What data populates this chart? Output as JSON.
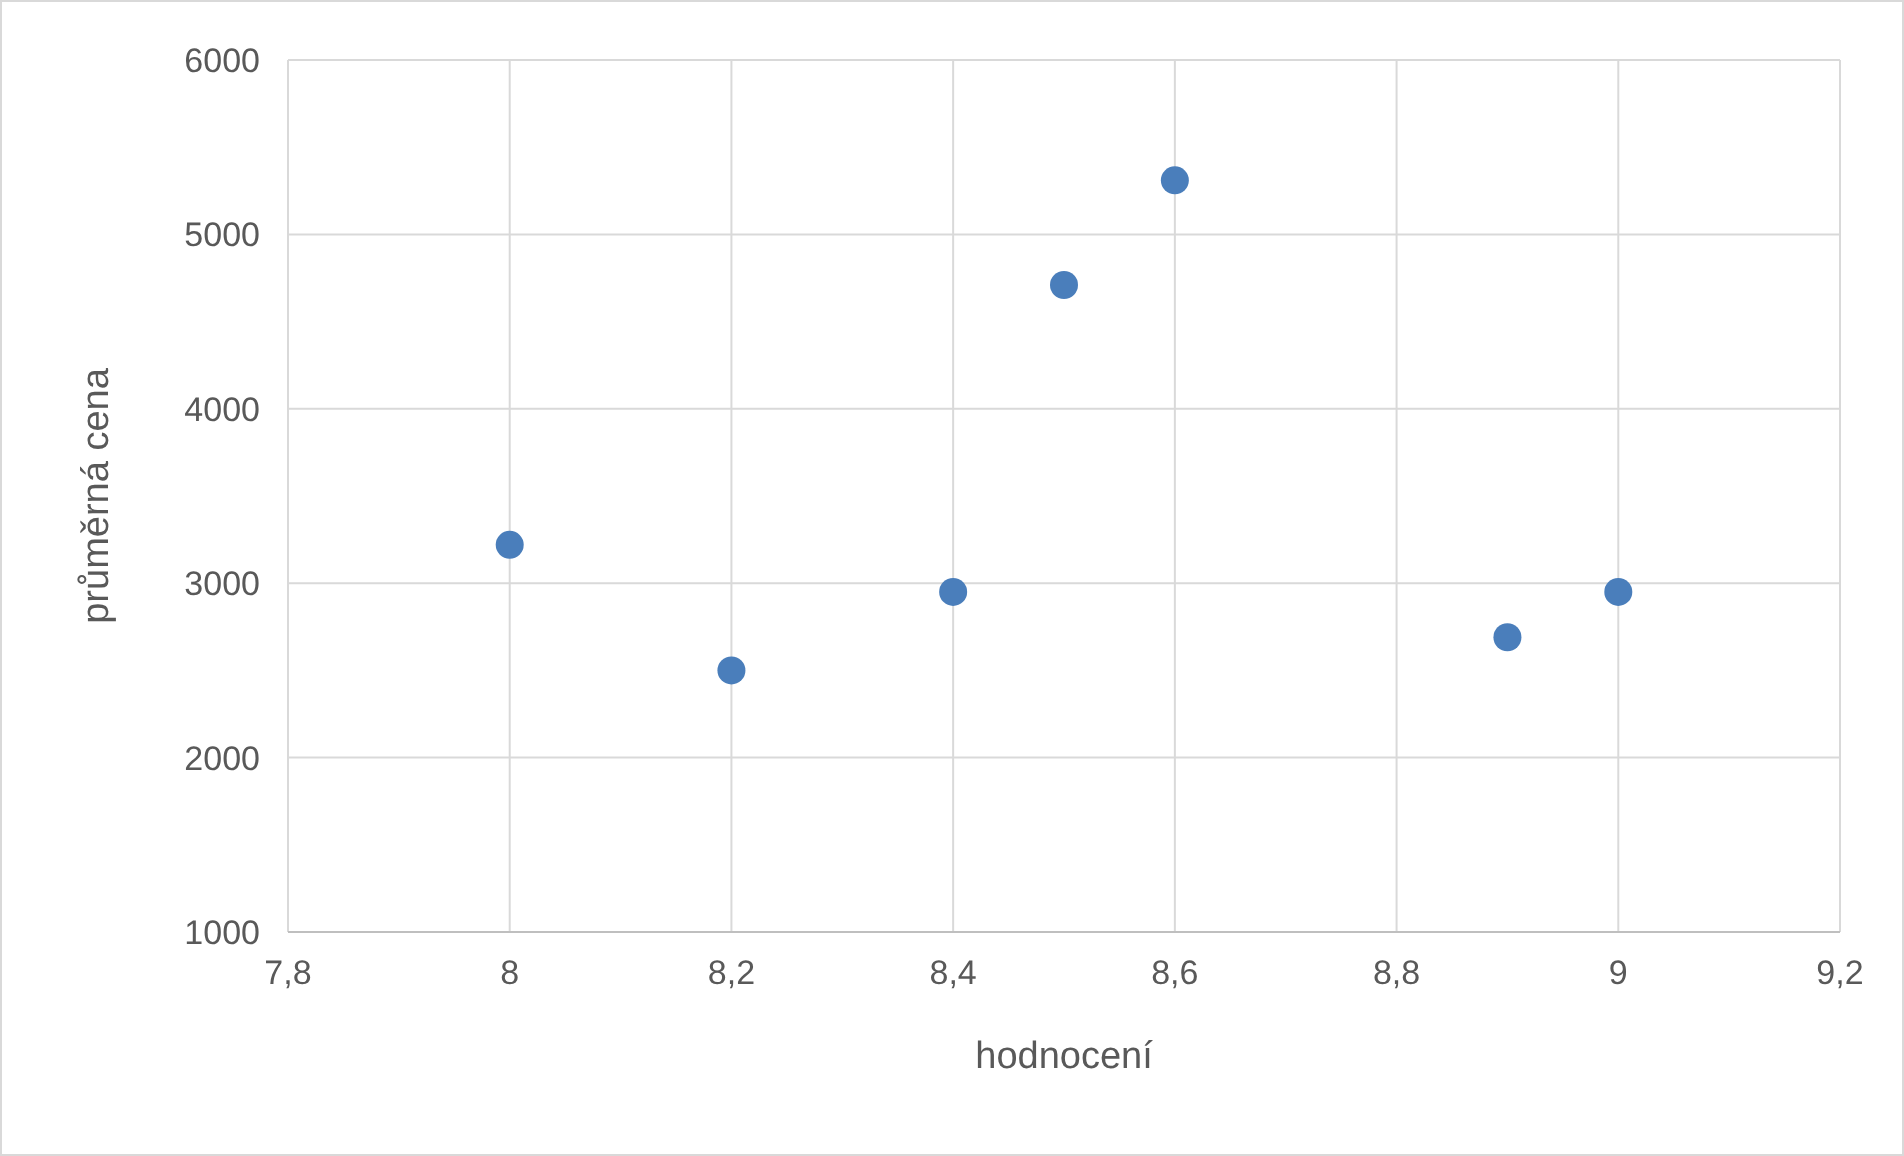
{
  "chart_data": {
    "type": "scatter",
    "xlabel": "hodnocení",
    "ylabel": "průměrná cena",
    "x": [
      8,
      8.2,
      8.4,
      8.5,
      8.6,
      8.9,
      9
    ],
    "values": [
      3220,
      2500,
      2950,
      4710,
      5310,
      2690,
      2950
    ],
    "color": "#4a7ebb",
    "marker": "circle",
    "grid": true,
    "xlim": [
      7.8,
      9.2
    ],
    "xticks": [
      {
        "value": 7.8,
        "label": "7,8"
      },
      8,
      {
        "value": 8.2,
        "label": "8,2"
      },
      {
        "value": 8.4,
        "label": "8,4"
      },
      {
        "value": 8.6,
        "label": "8,6"
      },
      {
        "value": 8.8,
        "label": "8,8"
      },
      9,
      {
        "value": 9.2,
        "label": "9,2"
      }
    ],
    "ylim": [
      1000,
      6000
    ],
    "yticks": [
      1000,
      2000,
      3000,
      4000,
      5000,
      6000
    ]
  }
}
